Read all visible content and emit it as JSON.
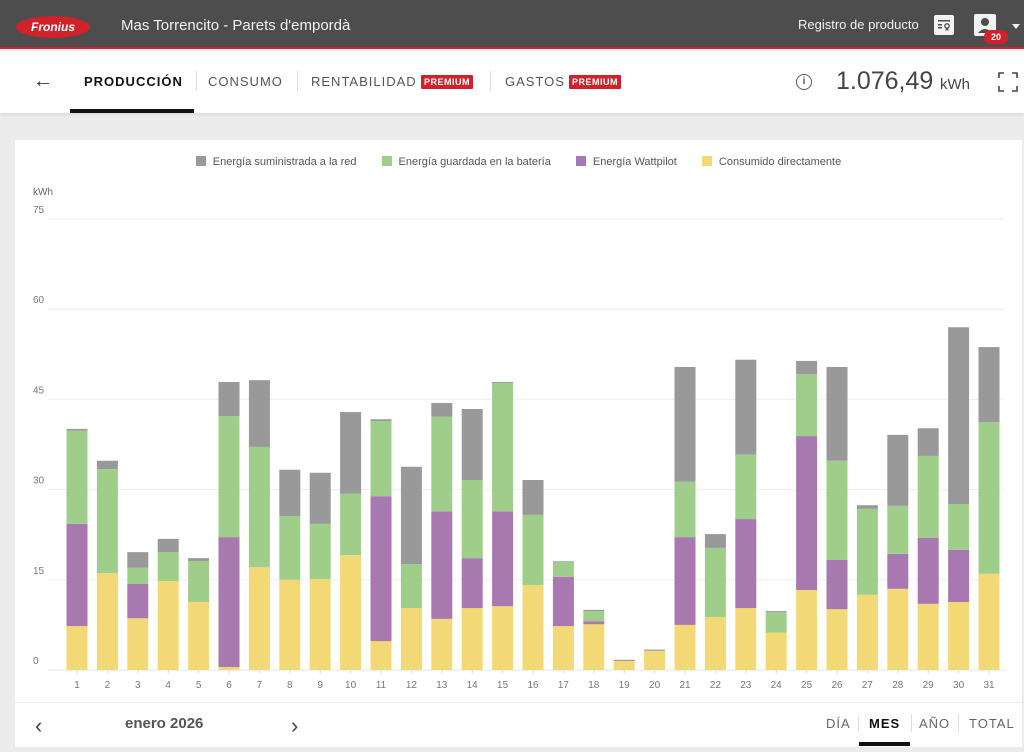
{
  "header": {
    "brand": "Fronius",
    "site_title": "Mas Torrencito - Parets d'empordà",
    "product_registration": "Registro de producto",
    "notification_count": "20"
  },
  "tabs": {
    "back_icon": "arrow-left-icon",
    "items": [
      {
        "label": "PRODUCCIÓN",
        "active": true
      },
      {
        "label": "CONSUMO",
        "active": false
      },
      {
        "label": "RENTABILIDAD",
        "badge": "PREMIUM",
        "active": false
      },
      {
        "label": "GASTOS",
        "badge": "PREMIUM",
        "active": false
      }
    ],
    "total_value": "1.076,49",
    "total_unit": "kWh"
  },
  "footer": {
    "month": "enero 2026",
    "periods": [
      {
        "label": "DÍA",
        "active": false
      },
      {
        "label": "MES",
        "active": true
      },
      {
        "label": "AÑO",
        "active": false
      },
      {
        "label": "TOTAL",
        "active": false
      }
    ]
  },
  "chart_data": {
    "type": "bar",
    "stacked": true,
    "title": "",
    "xlabel": "",
    "ylabel": "kWh",
    "ylim": [
      0,
      75
    ],
    "yticks": [
      0,
      15,
      30,
      45,
      60,
      75
    ],
    "grid": true,
    "legend_position": "top",
    "categories": [
      "1",
      "2",
      "3",
      "4",
      "5",
      "6",
      "7",
      "8",
      "9",
      "10",
      "11",
      "12",
      "13",
      "14",
      "15",
      "16",
      "17",
      "18",
      "19",
      "20",
      "21",
      "22",
      "23",
      "24",
      "25",
      "26",
      "27",
      "28",
      "29",
      "30",
      "31"
    ],
    "series": [
      {
        "name": "Consumido directamente",
        "color": "#f3d976",
        "values": [
          7.3,
          16.1,
          8.6,
          14.8,
          11.3,
          0.5,
          17.1,
          15.0,
          15.1,
          19.1,
          4.8,
          10.3,
          8.5,
          10.3,
          10.6,
          14.1,
          7.3,
          7.6,
          1.5,
          3.2,
          7.5,
          8.8,
          10.3,
          6.2,
          13.3,
          10.1,
          12.5,
          13.5,
          11.0,
          11.3,
          16.0
        ]
      },
      {
        "name": "Energía Wattpilot",
        "color": "#a779b0",
        "values": [
          17.0,
          0,
          5.7,
          0,
          0,
          21.6,
          0,
          0,
          0,
          0,
          24.1,
          0,
          17.9,
          8.3,
          15.8,
          0,
          8.2,
          0.5,
          0,
          0,
          14.6,
          0,
          14.8,
          0,
          25.6,
          8.2,
          0,
          5.8,
          11.0,
          8.7,
          0
        ]
      },
      {
        "name": "Energía guardada en la batería",
        "color": "#9fcd8a",
        "values": [
          15.5,
          17.3,
          2.7,
          4.8,
          6.8,
          20.1,
          20.0,
          10.6,
          9.2,
          10.2,
          12.5,
          7.3,
          15.7,
          13.0,
          21.3,
          11.7,
          2.5,
          1.7,
          0,
          0,
          9.2,
          11.5,
          10.7,
          3.4,
          10.3,
          16.5,
          14.3,
          8.0,
          13.6,
          7.6,
          25.2
        ]
      },
      {
        "name": "Energía suministrada a la red",
        "color": "#999999",
        "values": [
          0.3,
          1.4,
          2.6,
          2.2,
          0.5,
          5.7,
          11.1,
          7.7,
          8.5,
          13.6,
          0.3,
          16.2,
          2.3,
          11.8,
          0.2,
          5.8,
          0.1,
          0.2,
          0.2,
          0.2,
          19.1,
          2.3,
          15.8,
          0.2,
          2.2,
          15.6,
          0.6,
          11.8,
          4.6,
          29.4,
          12.5
        ]
      }
    ],
    "legend": [
      "Energía suministrada a la red",
      "Energía guardada en la batería",
      "Energía Wattpilot",
      "Consumido directamente"
    ]
  }
}
